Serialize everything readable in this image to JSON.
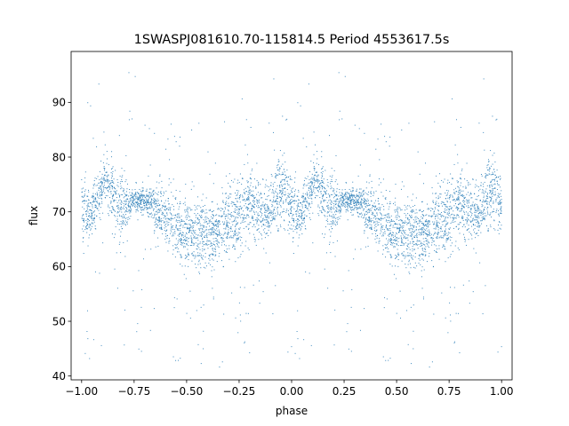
{
  "chart_data": {
    "type": "scatter",
    "title": "1SWASPJ081610.70-115814.5 Period 4553617.5s",
    "xlabel": "phase",
    "ylabel": "flux",
    "xlim": [
      -1.05,
      1.05
    ],
    "ylim": [
      39.3,
      99.3
    ],
    "xticks": [
      -1.0,
      -0.75,
      -0.5,
      -0.25,
      0.0,
      0.25,
      0.5,
      0.75,
      1.0
    ],
    "xtick_labels": [
      "−1.00",
      "−0.75",
      "−0.50",
      "−0.25",
      "0.00",
      "0.25",
      "0.50",
      "0.75",
      "1.00"
    ],
    "yticks": [
      40,
      50,
      60,
      70,
      80,
      90
    ],
    "ytick_labels": [
      "40",
      "50",
      "60",
      "70",
      "80",
      "90"
    ],
    "grid": false,
    "marker_color": "#1f77b4",
    "light_curve_profile": {
      "phase": [
        0.0,
        0.04,
        0.08,
        0.12,
        0.16,
        0.2,
        0.24,
        0.28,
        0.32,
        0.36,
        0.4,
        0.44,
        0.48,
        0.52,
        0.56,
        0.6,
        0.64,
        0.68,
        0.72,
        0.76,
        0.8,
        0.84,
        0.88,
        0.92,
        0.96,
        1.0
      ],
      "flux_median": [
        71.5,
        69.5,
        73.0,
        75.5,
        73.0,
        70.5,
        72.0,
        72.0,
        72.0,
        70.5,
        69.5,
        67.5,
        66.0,
        67.0,
        65.5,
        66.0,
        66.0,
        67.0,
        69.0,
        70.5,
        72.5,
        70.0,
        69.5,
        72.0,
        75.0,
        71.5
      ],
      "flux_spread": [
        4.0,
        3.0,
        3.0,
        3.0,
        3.5,
        4.0,
        1.5,
        1.5,
        1.5,
        3.5,
        4.0,
        4.0,
        4.5,
        3.5,
        4.5,
        4.5,
        4.0,
        4.0,
        4.0,
        4.5,
        4.5,
        3.5,
        3.5,
        3.5,
        4.5,
        4.0
      ]
    }
  }
}
